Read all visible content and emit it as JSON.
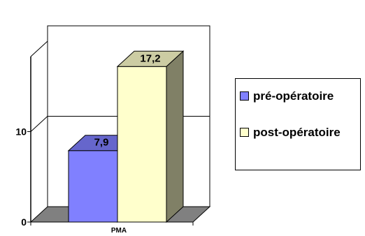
{
  "chart_data": {
    "type": "bar",
    "categories": [
      "PMA"
    ],
    "series": [
      {
        "name": "pré-opératoire",
        "values": [
          7.9
        ],
        "labels": [
          "7,9"
        ],
        "color": "#8080ff"
      },
      {
        "name": "post-opératoire",
        "values": [
          17.2
        ],
        "labels": [
          "17,2"
        ],
        "color": "#ffffcc"
      }
    ],
    "ylim": [
      0,
      20
    ],
    "yticks": [
      0,
      10
    ],
    "ytick_labels": [
      "0",
      "10"
    ],
    "grid": true,
    "legend": "right",
    "colors": {
      "floor": "#808080",
      "bar_side": "#808066",
      "bar_edge": "#000000"
    }
  }
}
